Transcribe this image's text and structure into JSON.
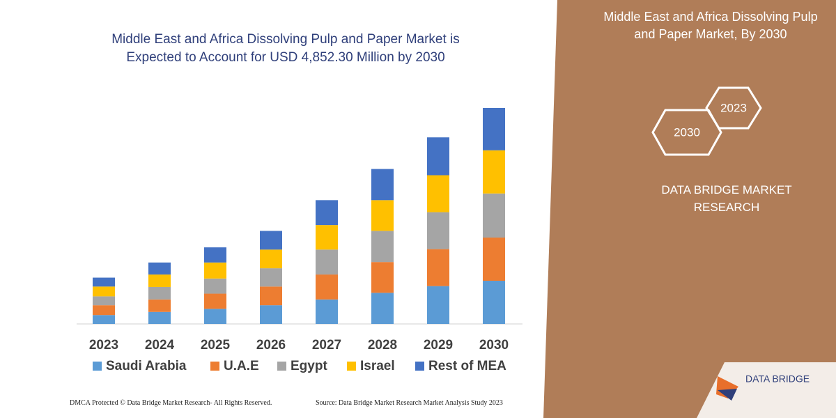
{
  "chart_data": {
    "type": "stacked-bar",
    "title": "Middle East and Africa Dissolving Pulp and Paper Market is Expected to Account for USD 4,852.30 Million by 2030",
    "categories": [
      "2023",
      "2024",
      "2025",
      "2026",
      "2027",
      "2028",
      "2029",
      "2030"
    ],
    "series": [
      {
        "name": "Saudi Arabia",
        "color": "#5b9bd5",
        "values": [
          200,
          270,
          340,
          420,
          550,
          700,
          850,
          970
        ]
      },
      {
        "name": "U.A.E",
        "color": "#ed7d31",
        "values": [
          220,
          280,
          340,
          420,
          560,
          690,
          830,
          970
        ]
      },
      {
        "name": "Egypt",
        "color": "#a5a5a5",
        "values": [
          200,
          280,
          340,
          410,
          560,
          700,
          830,
          990
        ]
      },
      {
        "name": "Israel",
        "color": "#ffc000",
        "values": [
          220,
          280,
          360,
          420,
          550,
          690,
          830,
          970
        ]
      },
      {
        "name": "Rest of MEA",
        "color": "#4472c4",
        "values": [
          200,
          270,
          340,
          420,
          560,
          700,
          850,
          950
        ]
      }
    ],
    "legend": "bottom"
  },
  "panel": {
    "title": "Middle East and Africa Dissolving Pulp and Paper Market, By 2030",
    "badges": [
      "2030",
      "2023"
    ],
    "brand": "DATA BRIDGE MARKET RESEARCH"
  },
  "logo": "DATA BRIDGE",
  "footer": {
    "left": "DMCA Protected © Data Bridge Market Research-  All Rights Reserved.",
    "right": "Source: Data Bridge Market Research  Market Analysis Study 2023"
  }
}
